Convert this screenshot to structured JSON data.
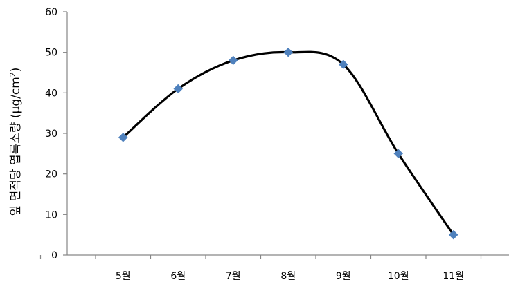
{
  "chart_data": {
    "type": "line",
    "title": "",
    "xlabel": "",
    "ylabel": "잎 면적당 엽록소량 (μg/cm",
    "ylabel_superscript": "2",
    "ylabel_suffix": ")",
    "categories": [
      "5월",
      "6월",
      "7월",
      "8월",
      "9월",
      "10월",
      "11월"
    ],
    "series": [
      {
        "values": [
          29,
          41,
          48,
          50,
          47,
          25,
          5
        ],
        "line_color": "#000000",
        "marker_color": "#4f81bd",
        "marker": "diamond",
        "smooth": true
      }
    ],
    "ylim": [
      0,
      60
    ],
    "yticks": [
      0,
      10,
      20,
      30,
      40,
      50,
      60
    ],
    "grid": false,
    "legend": "none"
  }
}
